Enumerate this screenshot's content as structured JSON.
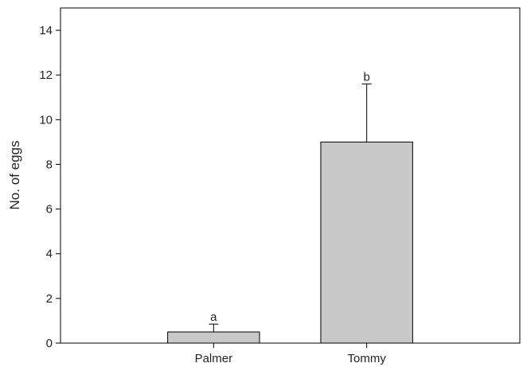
{
  "chart_data": {
    "type": "bar",
    "title": "",
    "xlabel": "",
    "ylabel": "No. of eggs",
    "categories": [
      "Palmer",
      "Tommy"
    ],
    "values": [
      0.5,
      9.0
    ],
    "error_upper": [
      0.85,
      11.6
    ],
    "significance_labels": [
      "a",
      "b"
    ],
    "ylim": [
      0,
      15
    ],
    "yticks": [
      "0",
      "2",
      "4",
      "6",
      "8",
      "10",
      "12",
      "14"
    ],
    "grid": false,
    "legend": "none",
    "bar_color": "#c8c8c8",
    "bar_edge_color": "#000000"
  }
}
